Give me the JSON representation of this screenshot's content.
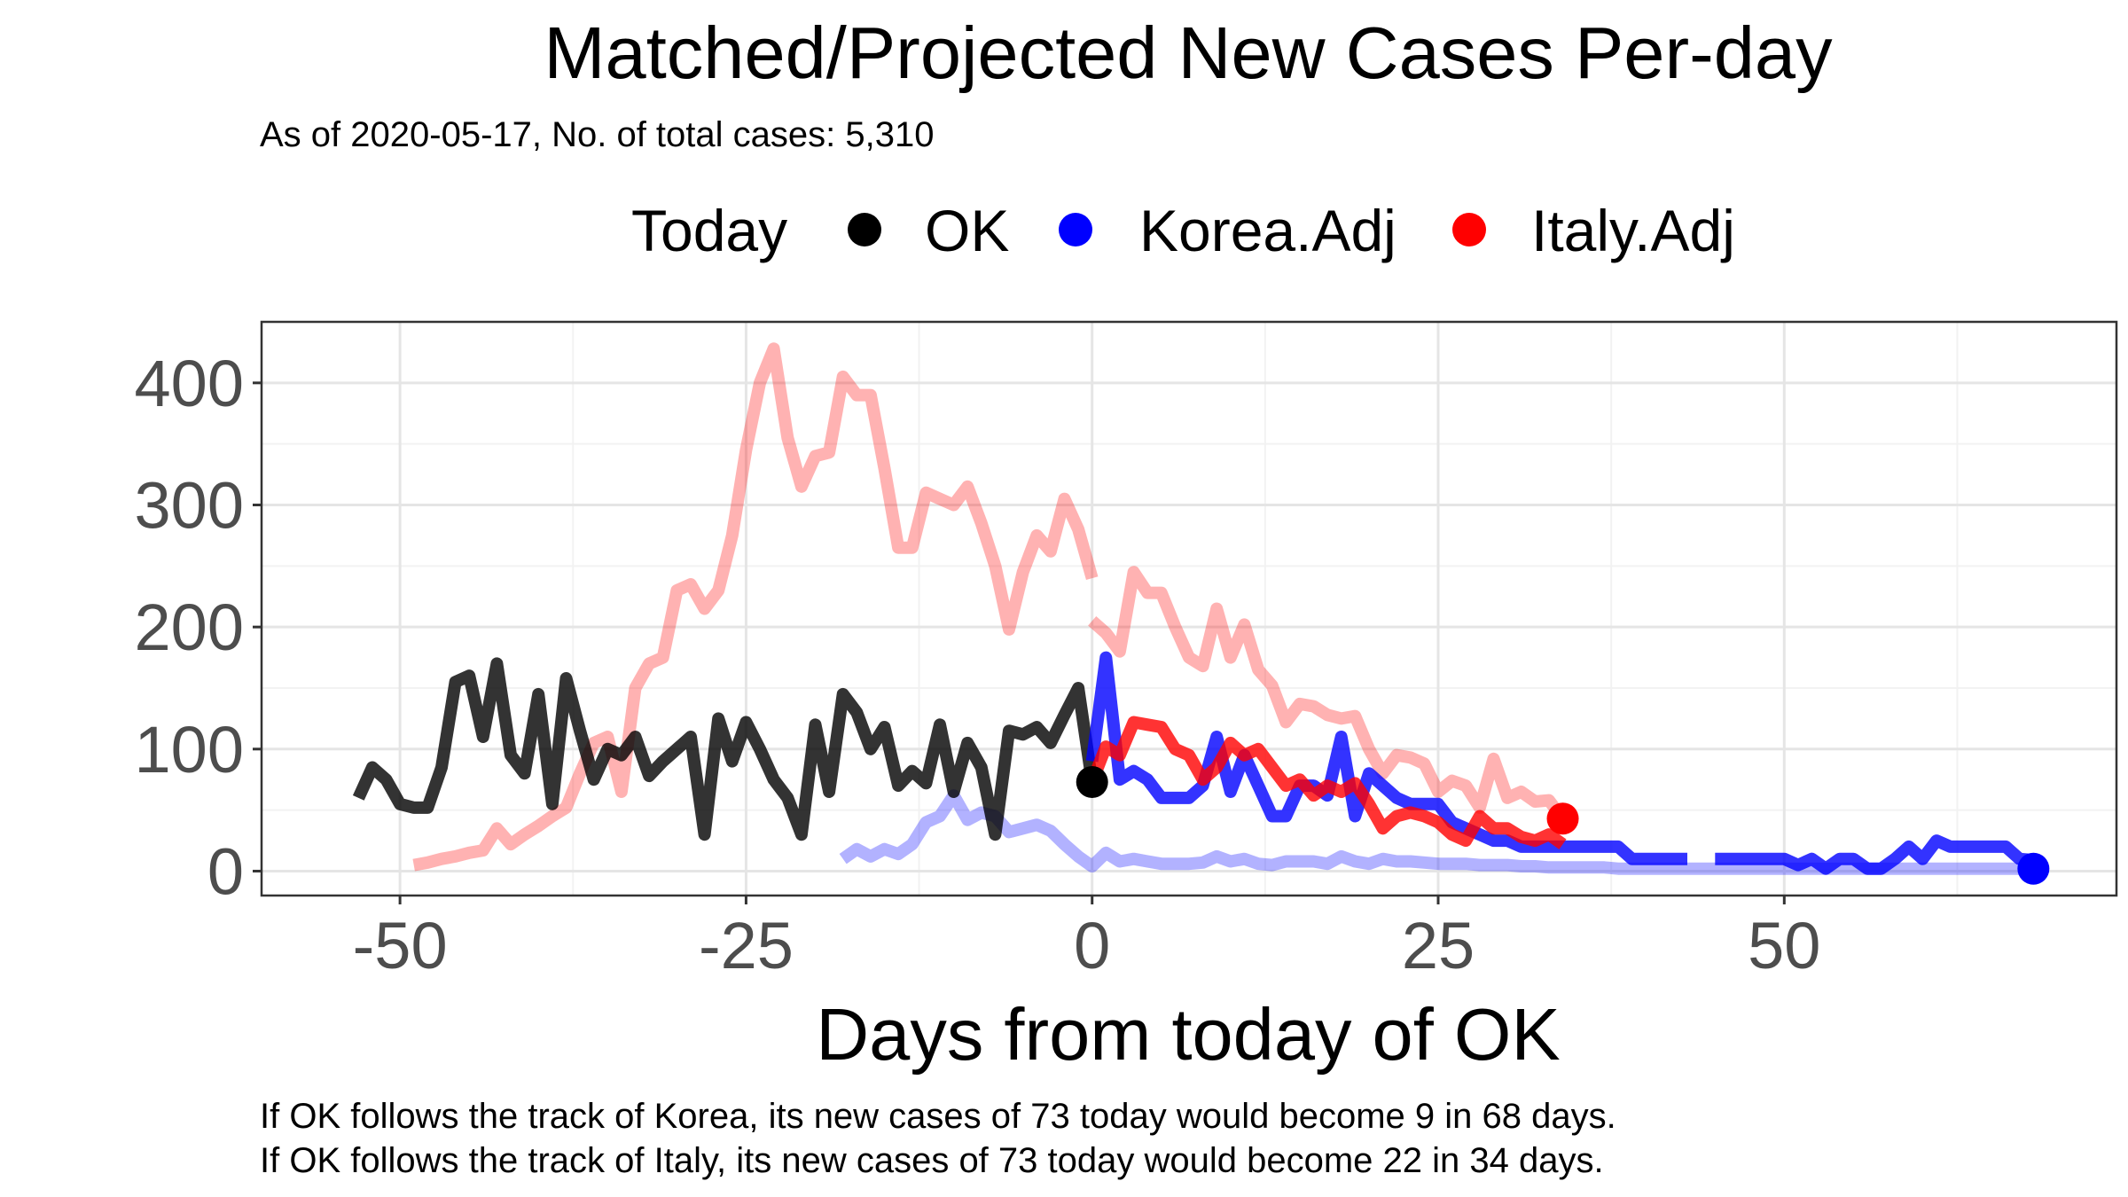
{
  "chart_data": {
    "type": "line",
    "title": "Matched/Projected New Cases Per-day",
    "subtitle": "As of 2020-05-17, No. of total cases: 5,310",
    "xlabel": "Days from today of OK",
    "ylabel": "",
    "xlim": [
      -60,
      74
    ],
    "ylim": [
      -20,
      450
    ],
    "x_ticks": [
      -50,
      -25,
      0,
      25,
      50
    ],
    "x_tick_labels": [
      "-50",
      "-25",
      "0",
      "25",
      "50"
    ],
    "y_ticks": [
      0,
      100,
      200,
      300,
      400
    ],
    "y_tick_labels": [
      "0",
      "100",
      "200",
      "300",
      "400"
    ],
    "grid": true,
    "legend": {
      "title": "Today",
      "position": "top",
      "items": [
        {
          "label": "OK",
          "color": "#000000"
        },
        {
          "label": "Korea.Adj",
          "color": "#0000ff"
        },
        {
          "label": "Italy.Adj",
          "color": "#ff0000"
        }
      ]
    },
    "caption": [
      "If OK follows the track of Korea, its new cases of 73 today would become 9 in 68 days.",
      "If OK follows the track of Italy, its new cases of 73 today would become 22 in 34 days."
    ],
    "series": [
      {
        "name": "Italy.Adj",
        "role": "matched-past",
        "color": "#ff0000",
        "opacity": 0.3,
        "x": [
          -49,
          -48,
          -47,
          -46,
          -45,
          -44,
          -43,
          -42,
          -41,
          -40,
          -39,
          -38,
          -37,
          -36,
          -35,
          -34,
          -33,
          -32,
          -31,
          -30,
          -29,
          -28,
          -27,
          -26,
          -25,
          -24,
          -23,
          -22,
          -21,
          -20,
          -19,
          -18,
          -17,
          -16,
          -15,
          -14,
          -13,
          -12,
          -11,
          -10,
          -9,
          -8,
          -7,
          -6,
          -5,
          -4,
          -3,
          -2,
          -1,
          0
        ],
        "y": [
          5,
          7,
          10,
          12,
          15,
          17,
          35,
          22,
          30,
          37,
          45,
          52,
          80,
          105,
          110,
          65,
          150,
          170,
          175,
          230,
          235,
          215,
          230,
          275,
          345,
          400,
          428,
          355,
          315,
          340,
          343,
          405,
          390,
          390,
          330,
          265,
          265,
          310,
          305,
          300,
          315,
          285,
          250,
          198,
          245,
          275,
          262,
          305,
          280,
          240
        ]
      },
      {
        "name": "Italy.Adj",
        "role": "projected",
        "color": "#ff0000",
        "opacity": 0.3,
        "x": [
          0,
          1,
          2,
          3,
          4,
          5,
          6,
          7,
          8,
          9,
          10,
          11,
          12,
          13,
          14,
          15,
          16,
          17,
          18,
          19,
          20,
          21,
          22,
          23,
          24,
          25,
          26,
          27,
          28,
          29,
          30,
          31,
          32,
          33,
          34
        ],
        "y": [
          205,
          195,
          180,
          245,
          228,
          228,
          200,
          175,
          168,
          215,
          175,
          202,
          165,
          152,
          122,
          137,
          135,
          128,
          125,
          127,
          100,
          80,
          95,
          93,
          88,
          65,
          74,
          70,
          52,
          92,
          60,
          65,
          57,
          58,
          43
        ]
      },
      {
        "name": "Korea.Adj",
        "role": "matched-past",
        "color": "#0000ff",
        "opacity": 0.3,
        "x": [
          -18,
          -17,
          -16,
          -15,
          -14,
          -13,
          -12,
          -11,
          -10,
          -9,
          -8,
          -7,
          -6,
          -5,
          -4,
          -3,
          -2,
          -1,
          0,
          1,
          2,
          3,
          4,
          5,
          6,
          7,
          8,
          9,
          10,
          11,
          12,
          13,
          14,
          15,
          16,
          17,
          18,
          19,
          20,
          21,
          22,
          23,
          24,
          25,
          26,
          27,
          28,
          29,
          30,
          31,
          32,
          33,
          34,
          35,
          36,
          37,
          38,
          39,
          40,
          41,
          42,
          43,
          44,
          45,
          46,
          47,
          48,
          49,
          50,
          51,
          52,
          53,
          54,
          55,
          56,
          57,
          58,
          59,
          60,
          61,
          62,
          63,
          64,
          65,
          66,
          67,
          68
        ],
        "y": [
          10,
          18,
          12,
          18,
          14,
          22,
          40,
          45,
          62,
          42,
          48,
          45,
          32,
          35,
          38,
          33,
          22,
          12,
          4,
          15,
          8,
          10,
          8,
          6,
          6,
          6,
          7,
          12,
          8,
          10,
          6,
          5,
          8,
          8,
          8,
          6,
          12,
          8,
          6,
          10,
          8,
          8,
          7,
          6,
          6,
          6,
          5,
          5,
          5,
          4,
          4,
          3,
          3,
          3,
          3,
          3,
          2,
          2,
          2,
          2,
          2,
          2,
          2,
          2,
          2,
          2,
          2,
          2,
          2,
          2,
          2,
          2,
          2,
          2,
          2,
          2,
          2,
          2,
          2,
          2,
          2,
          2,
          2,
          2,
          2,
          2,
          2
        ]
      },
      {
        "name": "OK",
        "role": "actual",
        "color": "#000000",
        "opacity": 0.8,
        "x": [
          -53,
          -52,
          -51,
          -50,
          -49,
          -48,
          -47,
          -46,
          -45,
          -44,
          -43,
          -42,
          -41,
          -40,
          -39,
          -38,
          -37,
          -36,
          -35,
          -34,
          -33,
          -32,
          -31,
          -30,
          -29,
          -28,
          -27,
          -26,
          -25,
          -24,
          -23,
          -22,
          -21,
          -20,
          -19,
          -18,
          -17,
          -16,
          -15,
          -14,
          -13,
          -12,
          -11,
          -10,
          -9,
          -8,
          -7,
          -6,
          -5,
          -4,
          -3,
          -2,
          -1,
          0
        ],
        "y": [
          60,
          85,
          75,
          55,
          52,
          52,
          85,
          155,
          160,
          110,
          170,
          95,
          80,
          145,
          55,
          158,
          115,
          75,
          100,
          95,
          110,
          78,
          90,
          100,
          110,
          30,
          125,
          90,
          122,
          100,
          75,
          60,
          30,
          120,
          65,
          145,
          130,
          100,
          118,
          70,
          82,
          72,
          120,
          65,
          105,
          85,
          30,
          115,
          112,
          118,
          105,
          128,
          150,
          73
        ]
      },
      {
        "name": "Korea.Adj",
        "role": "projected",
        "color": "#0000ff",
        "opacity": 0.8,
        "x": [
          0,
          1,
          2,
          3,
          4,
          5,
          6,
          7,
          8,
          9,
          10,
          11,
          12,
          13,
          14,
          15,
          16,
          17,
          18,
          19,
          20,
          21,
          22,
          23,
          24,
          25,
          26,
          27,
          28,
          29,
          30,
          31,
          32,
          33,
          34,
          35,
          36,
          37,
          38,
          39,
          40,
          41,
          42,
          43,
          44,
          45,
          46,
          47,
          48,
          49,
          50,
          51,
          52,
          53,
          54,
          55,
          56,
          57,
          58,
          59,
          60,
          61,
          62,
          63,
          64,
          65,
          66,
          67,
          68
        ],
        "y": [
          90,
          175,
          75,
          82,
          75,
          60,
          60,
          60,
          70,
          110,
          65,
          95,
          70,
          45,
          45,
          70,
          70,
          62,
          110,
          45,
          80,
          70,
          60,
          55,
          55,
          55,
          40,
          35,
          30,
          25,
          25,
          20,
          20,
          20,
          20,
          20,
          20,
          20,
          20,
          10,
          10,
          10,
          10,
          10,
          null,
          10,
          10,
          10,
          10,
          10,
          10,
          5,
          10,
          2,
          10,
          10,
          2,
          2,
          10,
          20,
          10,
          25,
          20,
          20,
          20,
          20,
          20,
          10,
          9
        ]
      },
      {
        "name": "Italy.Adj",
        "role": "projected",
        "color": "#ff0000",
        "opacity": 0.8,
        "x": [
          0,
          1,
          2,
          3,
          4,
          5,
          6,
          7,
          8,
          9,
          10,
          11,
          12,
          13,
          14,
          15,
          16,
          17,
          18,
          19,
          20,
          21,
          22,
          23,
          24,
          25,
          26,
          27,
          28,
          29,
          30,
          31,
          32,
          33,
          34
        ],
        "y": [
          73,
          102,
          95,
          122,
          120,
          118,
          100,
          95,
          75,
          85,
          105,
          95,
          100,
          85,
          70,
          75,
          62,
          70,
          65,
          72,
          55,
          35,
          45,
          48,
          45,
          40,
          30,
          25,
          45,
          35,
          35,
          28,
          25,
          30,
          22
        ]
      }
    ],
    "today_points": [
      {
        "name": "OK",
        "x": 0,
        "y": 73,
        "color": "#000000"
      },
      {
        "name": "Korea.Adj",
        "x": 68,
        "y": 2,
        "color": "#0000ff"
      },
      {
        "name": "Italy.Adj",
        "x": 34,
        "y": 43,
        "color": "#ff0000"
      }
    ]
  }
}
